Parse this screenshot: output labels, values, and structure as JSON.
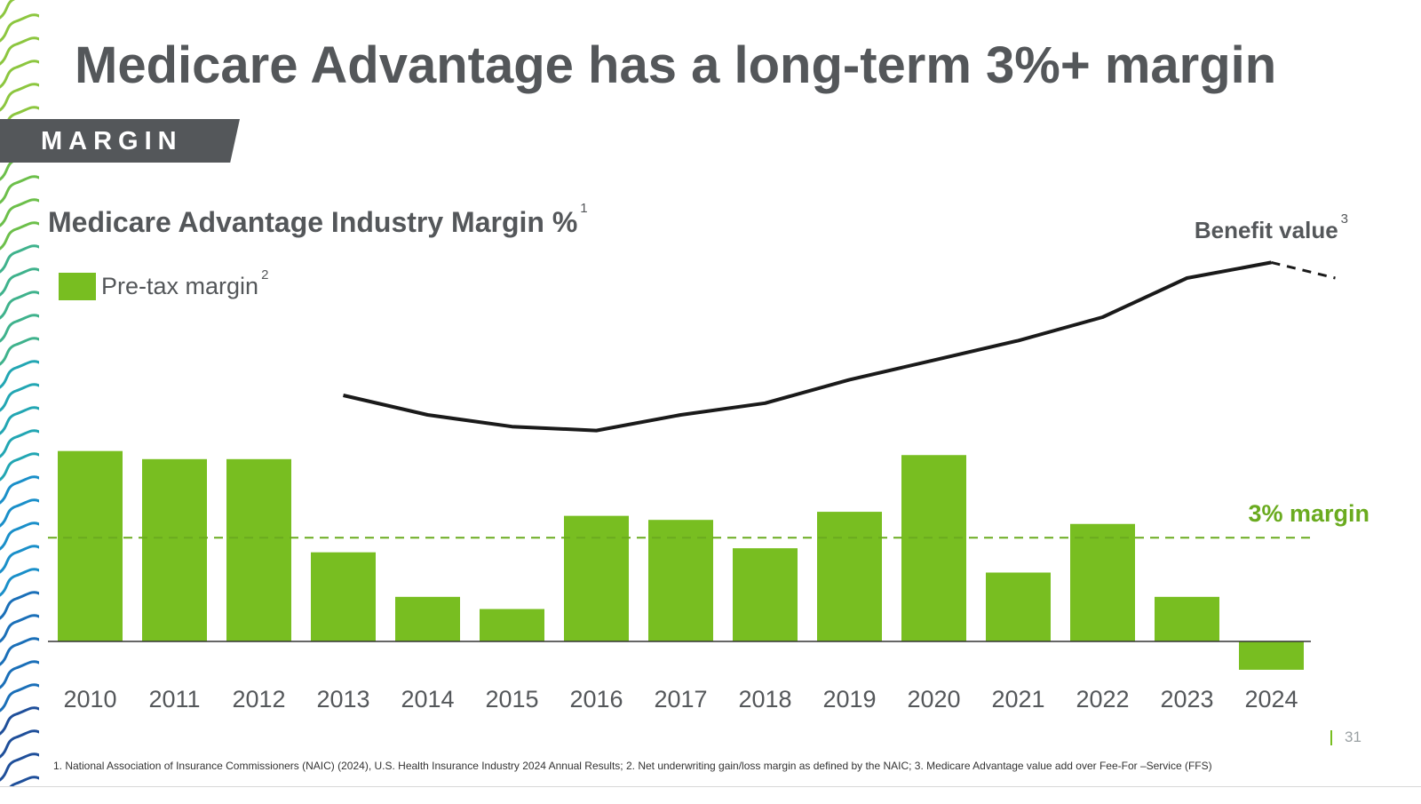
{
  "slide": {
    "title": "Medicare Advantage has a long-term 3%+ margin",
    "tag": "MARGIN",
    "page_number": "31",
    "footnote": "1. National Association of Insurance Commissioners (NAIC) (2024), U.S. Health Insurance Industry 2024 Annual Results; 2. Net underwriting gain/loss margin as defined by the NAIC; 3. Medicare Advantage value add over Fee-For –Service (FFS)"
  },
  "colors": {
    "bar": "#78be21",
    "title": "#54575a",
    "threshold": "#6aab1f",
    "line": "#1a1a1a"
  },
  "chart_data": {
    "type": "bar",
    "title": "Medicare Advantage Industry Margin %",
    "title_sup": "1",
    "categories": [
      "2010",
      "2011",
      "2012",
      "2013",
      "2014",
      "2015",
      "2016",
      "2017",
      "2018",
      "2019",
      "2020",
      "2021",
      "2022",
      "2023",
      "2024"
    ],
    "series": [
      {
        "name": "Pre-tax margin",
        "name_sup": "2",
        "values": [
          4.7,
          4.5,
          4.5,
          2.2,
          1.1,
          0.8,
          3.1,
          3.0,
          2.3,
          3.2,
          4.6,
          1.7,
          2.9,
          1.1,
          -0.7
        ]
      }
    ],
    "threshold": {
      "value": 3,
      "label": "3% margin"
    },
    "benefit_line": {
      "label": "Benefit value",
      "label_sup": "3",
      "categories": [
        "2013",
        "2014",
        "2015",
        "2016",
        "2017",
        "2018",
        "2019",
        "2020",
        "2021",
        "2022",
        "2023",
        "2024"
      ],
      "values": [
        6.2,
        5.7,
        5.4,
        5.3,
        5.7,
        6.0,
        6.6,
        7.1,
        7.6,
        8.2,
        9.2,
        9.6
      ],
      "projection": {
        "from": "2024",
        "to_value": 9.2
      }
    },
    "ylim": [
      -0.7,
      9.6
    ],
    "grid": false,
    "legend": "top-left"
  }
}
